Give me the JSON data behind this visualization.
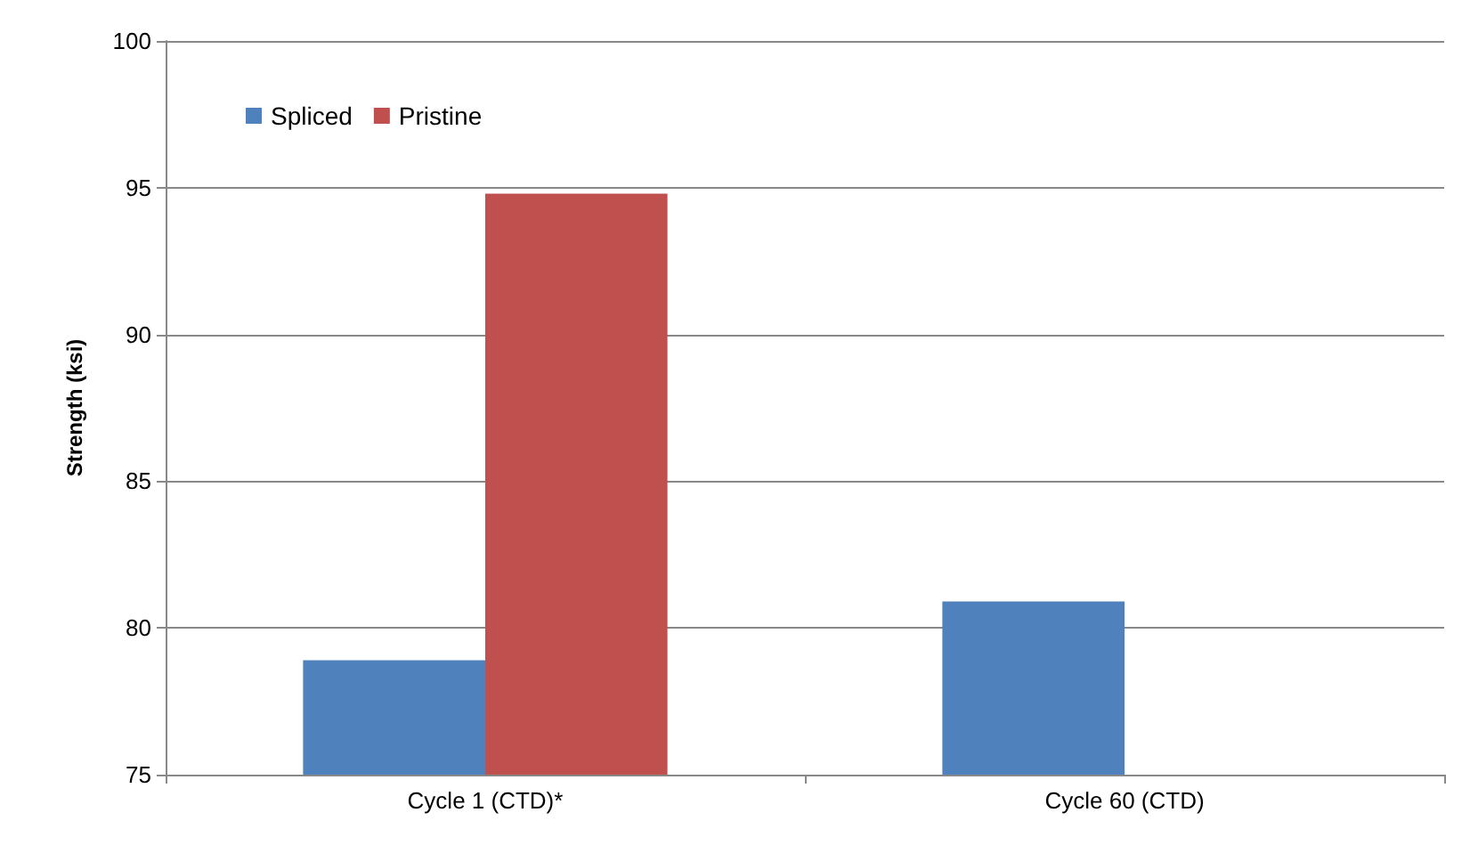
{
  "chart_data": {
    "type": "bar",
    "ylabel": "Strength (ksi)",
    "categories": [
      "Cycle 1 (CTD)*",
      "Cycle 60 (CTD)"
    ],
    "series": [
      {
        "name": "Spliced",
        "color": "#4f81bd",
        "values": [
          78.9,
          80.9
        ]
      },
      {
        "name": "Pristine",
        "color": "#c0504d",
        "values": [
          94.8,
          null
        ]
      }
    ],
    "ylim": [
      75,
      100
    ],
    "yticks": [
      75,
      80,
      85,
      90,
      95,
      100
    ],
    "grid": "y",
    "legend": "top left"
  }
}
